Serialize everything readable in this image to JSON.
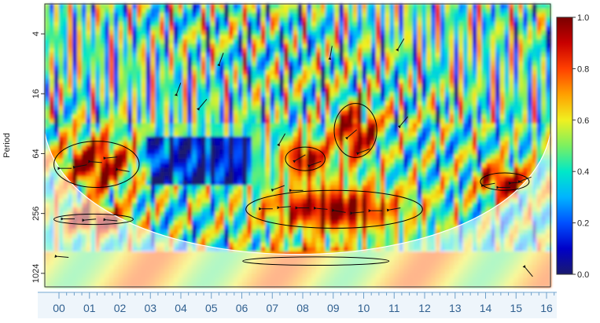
{
  "chart_data": {
    "type": "heatmap",
    "title": "",
    "xlabel": "",
    "ylabel": "Period",
    "x_tick_labels": [
      "00",
      "01",
      "02",
      "03",
      "04",
      "05",
      "06",
      "07",
      "08",
      "09",
      "10",
      "11",
      "12",
      "13",
      "14",
      "15",
      "16"
    ],
    "y_ticks": [
      {
        "label": "4",
        "period": 4
      },
      {
        "label": "16",
        "period": 16
      },
      {
        "label": "64",
        "period": 64
      },
      {
        "label": "256",
        "period": 256
      },
      {
        "label": "1024",
        "period": 1024
      }
    ],
    "y_scale": "log2",
    "y_range": [
      2,
      1400
    ],
    "x_range": [
      -0.3,
      16.3
    ],
    "colorbar": {
      "range": [
        0,
        1
      ],
      "ticks": [
        "0.0",
        "0.2",
        "0.4",
        "0.6",
        "0.8",
        "1.0"
      ],
      "colors": [
        "#1a1a6e",
        "#0000c8",
        "#0050ff",
        "#00b4ff",
        "#00e8c8",
        "#7cf060",
        "#f0f020",
        "#ffa000",
        "#ff4000",
        "#c80000",
        "#7a0000"
      ]
    },
    "significant_regions": [
      {
        "x_start": 0.0,
        "x_end": 2.8,
        "period_low": 48,
        "period_high": 140
      },
      {
        "x_start": 0.0,
        "x_end": 2.6,
        "period_low": 260,
        "period_high": 330
      },
      {
        "x_start": 6.3,
        "x_end": 12.1,
        "period_low": 150,
        "period_high": 360
      },
      {
        "x_start": 7.6,
        "x_end": 8.9,
        "period_low": 55,
        "period_high": 95
      },
      {
        "x_start": 9.2,
        "x_end": 10.6,
        "period_low": 20,
        "period_high": 70
      },
      {
        "x_start": 6.2,
        "x_end": 11.0,
        "period_low": 700,
        "period_high": 850
      },
      {
        "x_start": 14.0,
        "x_end": 15.6,
        "period_low": 100,
        "period_high": 150
      }
    ],
    "arrows": [
      {
        "x": 0.4,
        "period": 90,
        "angle": 180
      },
      {
        "x": 0.9,
        "period": 85,
        "angle": 190
      },
      {
        "x": 1.4,
        "period": 78,
        "angle": 175
      },
      {
        "x": 1.9,
        "period": 70,
        "angle": 185
      },
      {
        "x": 2.3,
        "period": 95,
        "angle": 170
      },
      {
        "x": 0.5,
        "period": 290,
        "angle": 180
      },
      {
        "x": 1.2,
        "period": 295,
        "angle": 185
      },
      {
        "x": 1.9,
        "period": 300,
        "angle": 175
      },
      {
        "x": 0.3,
        "period": 700,
        "angle": 175
      },
      {
        "x": 7.0,
        "period": 230,
        "angle": 180
      },
      {
        "x": 7.6,
        "period": 220,
        "angle": 185
      },
      {
        "x": 8.2,
        "period": 225,
        "angle": 180
      },
      {
        "x": 8.8,
        "period": 230,
        "angle": 175
      },
      {
        "x": 9.4,
        "period": 245,
        "angle": 170
      },
      {
        "x": 10.0,
        "period": 250,
        "angle": 185
      },
      {
        "x": 10.6,
        "period": 240,
        "angle": 180
      },
      {
        "x": 11.2,
        "period": 230,
        "angle": 190
      },
      {
        "x": 7.4,
        "period": 140,
        "angle": 200
      },
      {
        "x": 8.0,
        "period": 150,
        "angle": 180
      },
      {
        "x": 8.1,
        "period": 70,
        "angle": 210
      },
      {
        "x": 8.6,
        "period": 80,
        "angle": 200
      },
      {
        "x": 9.8,
        "period": 40,
        "angle": 220
      },
      {
        "x": 10.2,
        "period": 60,
        "angle": 200
      },
      {
        "x": 11.5,
        "period": 30,
        "angle": 230
      },
      {
        "x": 7.5,
        "period": 45,
        "angle": 240
      },
      {
        "x": 4.1,
        "period": 14,
        "angle": 250
      },
      {
        "x": 4.9,
        "period": 20,
        "angle": 230
      },
      {
        "x": 14.3,
        "period": 130,
        "angle": 190
      },
      {
        "x": 14.8,
        "period": 140,
        "angle": 180
      },
      {
        "x": 15.2,
        "period": 125,
        "angle": 185
      },
      {
        "x": 15.5,
        "period": 115,
        "angle": 200
      },
      {
        "x": 15.6,
        "period": 1000,
        "angle": 130
      },
      {
        "x": 9.1,
        "period": 6,
        "angle": 260
      },
      {
        "x": 5.5,
        "period": 7,
        "angle": 250
      },
      {
        "x": 11.4,
        "period": 5,
        "angle": 240
      }
    ]
  }
}
